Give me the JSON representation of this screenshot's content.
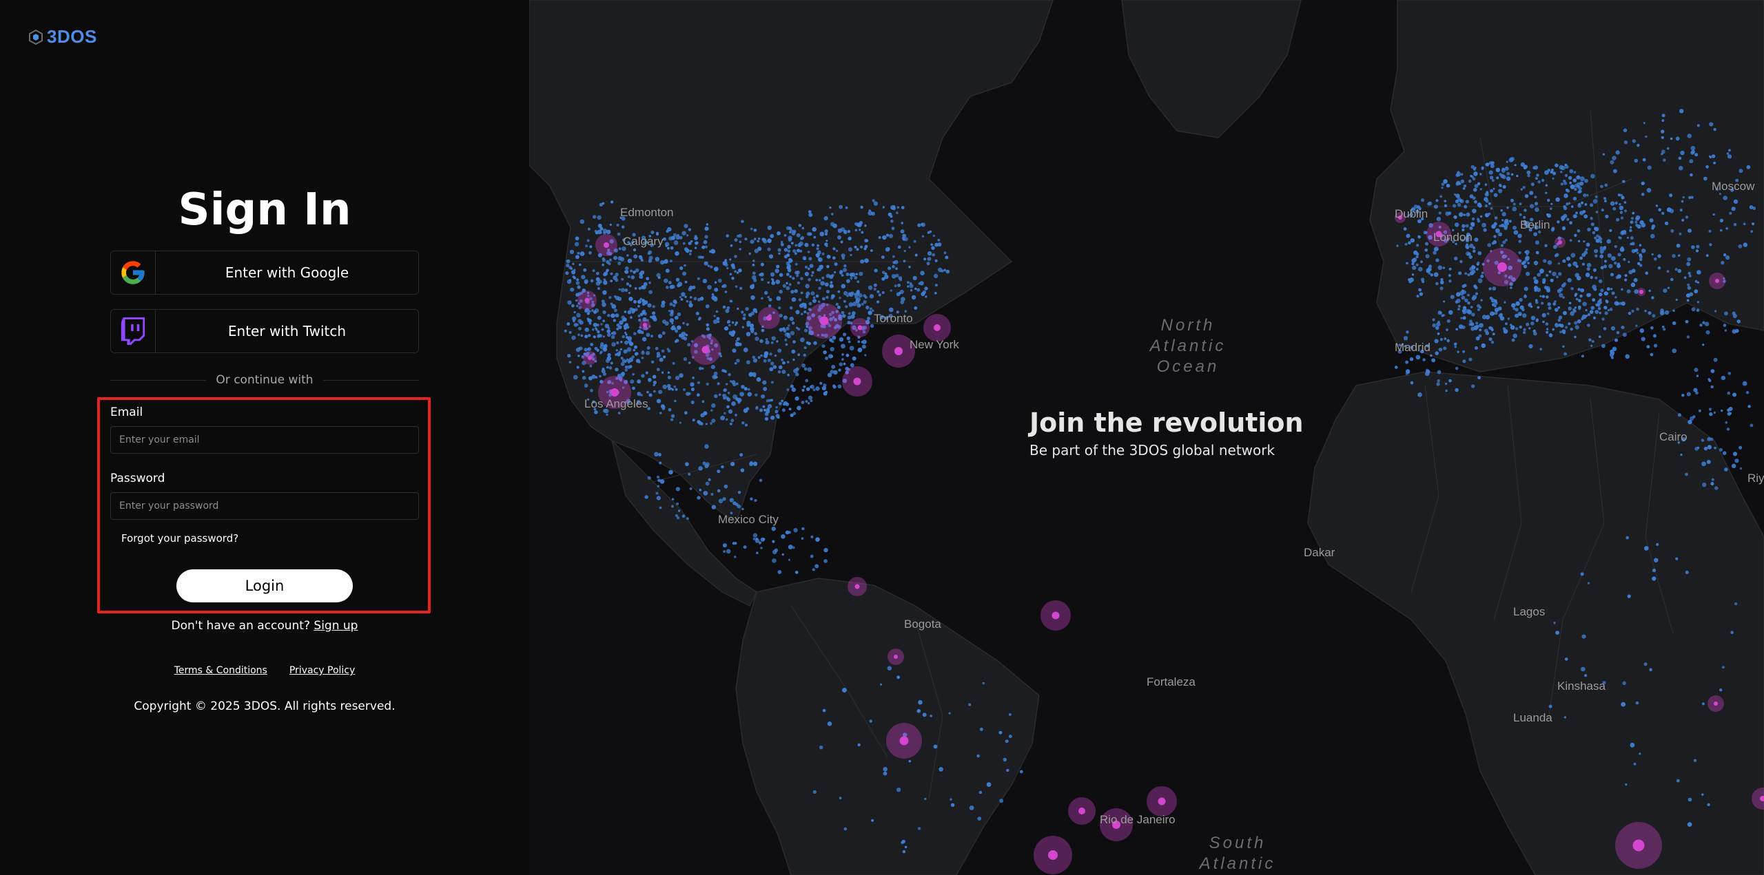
{
  "brand": {
    "logo_text": "3DOS",
    "color": "#4e8de8"
  },
  "signin": {
    "title": "Sign In",
    "google_label": "Enter with Google",
    "twitch_label": "Enter with Twitch",
    "divider_text": "Or continue with",
    "email_label": "Email",
    "email_placeholder": "Enter your email",
    "password_label": "Password",
    "password_placeholder": "Enter your password",
    "forgot_label": "Forgot your password?",
    "login_label": "Login",
    "no_account_text": "Don't have an account?",
    "signup_label": "Sign up"
  },
  "footer": {
    "terms_label": "Terms & Conditions",
    "privacy_label": "Privacy Policy",
    "copyright": "Copyright © 2025 3DOS. All rights reserved."
  },
  "map": {
    "headline": "Join the revolution",
    "subheadline": "Be part of the 3DOS global network",
    "cities": [
      "Edmonton",
      "Calgary",
      "Los Angeles",
      "Mexico City",
      "Bogota",
      "Fortaleza",
      "Rio de Janeiro",
      "Madrid",
      "Berlin",
      "Moscow",
      "Cairo",
      "Dakar",
      "Lagos",
      "Kinshasa",
      "Luanda",
      "Riyadh",
      "Toronto",
      "New York",
      "London",
      "Dublin"
    ],
    "oceans": {
      "north_atlantic": [
        "North",
        "Atlantic",
        "Ocean"
      ],
      "south_atlantic": [
        "South",
        "Atlantic"
      ]
    },
    "colors": {
      "node_dot": "#3f7fd6",
      "hotspot": "#d446d0",
      "land": "#1c1d20",
      "water": "#0e0e10"
    }
  }
}
